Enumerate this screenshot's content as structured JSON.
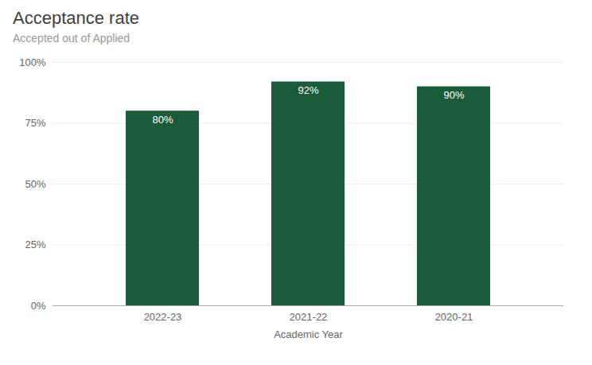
{
  "chart_data": {
    "type": "bar",
    "title": "Acceptance rate",
    "subtitle": "Accepted out of Applied",
    "xlabel": "Academic Year",
    "categories": [
      "2022-23",
      "2021-22",
      "2020-21"
    ],
    "values": [
      80,
      92,
      90
    ],
    "value_labels": [
      "80%",
      "92%",
      "90%"
    ],
    "color": "#1a5c3a",
    "ylim": [
      0,
      100
    ],
    "yticks": [
      {
        "value": 0,
        "label": "0%"
      },
      {
        "value": 25,
        "label": "25%"
      },
      {
        "value": 50,
        "label": "50%"
      },
      {
        "value": 75,
        "label": "75%"
      },
      {
        "value": 100,
        "label": "100%"
      }
    ],
    "grid": true,
    "data_labels": true
  }
}
